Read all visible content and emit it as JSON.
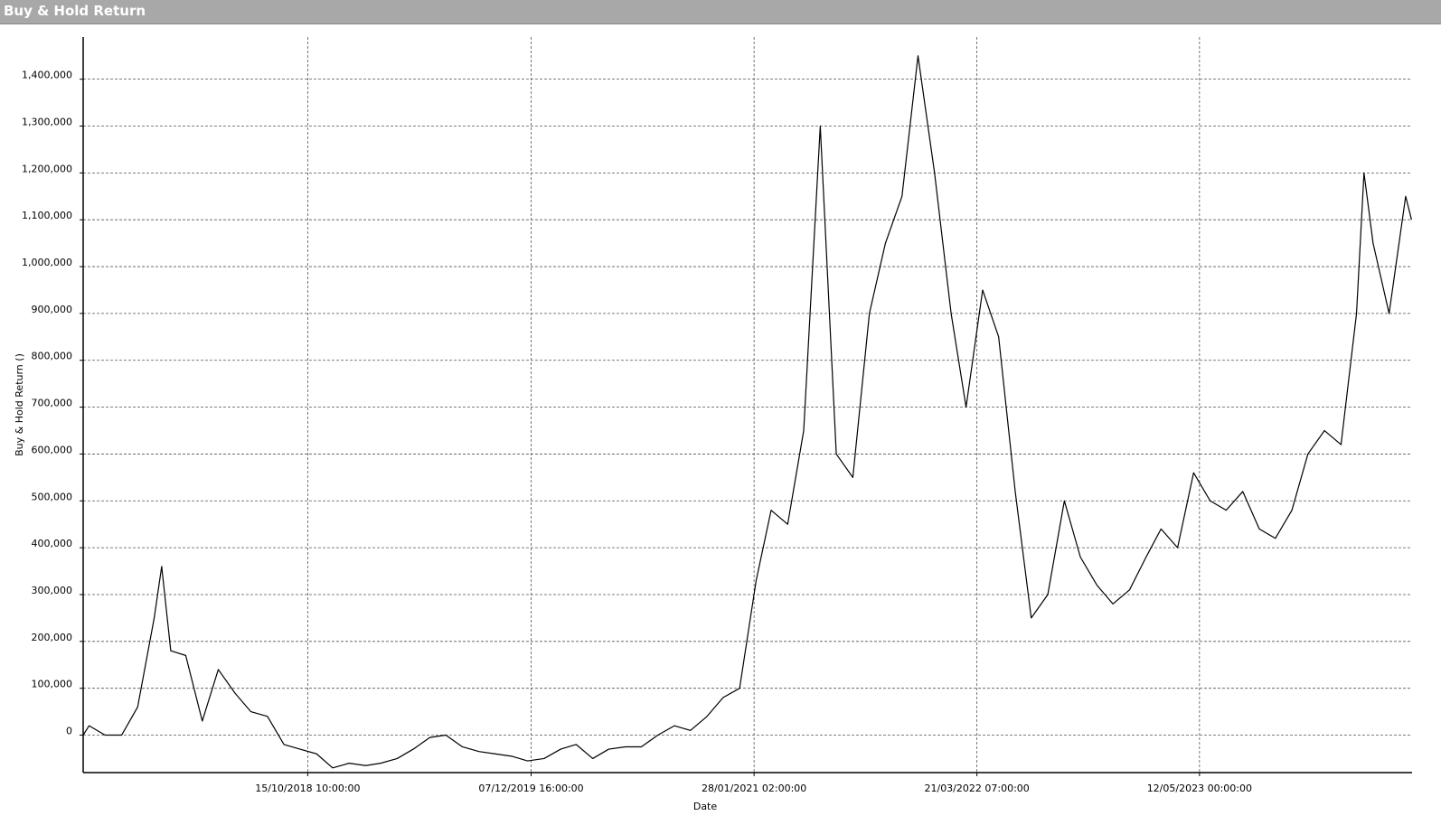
{
  "chart_data": {
    "type": "line",
    "title": "Buy & Hold Return",
    "x_label": "Date",
    "y_label": "Buy & Hold Return ()",
    "color": "#000000",
    "grid": true,
    "xlim": [
      "2017-08-21T00:00:00",
      "2024-06-13T00:00:00"
    ],
    "xticks": [
      {
        "value": "2018-10-15T10:00:00",
        "label": "15/10/2018 10:00:00"
      },
      {
        "value": "2019-12-07T16:00:00",
        "label": "07/12/2019 16:00:00"
      },
      {
        "value": "2021-01-28T02:00:00",
        "label": "28/01/2021 02:00:00"
      },
      {
        "value": "2022-03-21T07:00:00",
        "label": "21/03/2022 07:00:00"
      },
      {
        "value": "2023-05-12T00:00:00",
        "label": "12/05/2023 00:00:00"
      }
    ],
    "ylim": [
      -80000,
      1490000
    ],
    "yticks": [
      0,
      {
        "value": 100000,
        "label": "100,000"
      },
      {
        "value": 200000,
        "label": "200,000"
      },
      {
        "value": 300000,
        "label": "300,000"
      },
      {
        "value": 400000,
        "label": "400,000"
      },
      {
        "value": 500000,
        "label": "500,000"
      },
      {
        "value": 600000,
        "label": "600,000"
      },
      {
        "value": 700000,
        "label": "700,000"
      },
      {
        "value": 800000,
        "label": "800,000"
      },
      {
        "value": 900000,
        "label": "900,000"
      },
      {
        "value": 1000000,
        "label": "1,000,000"
      },
      {
        "value": 1100000,
        "label": "1,100,000"
      },
      {
        "value": 1200000,
        "label": "1,200,000"
      },
      {
        "value": 1300000,
        "label": "1,300,000"
      },
      {
        "value": 1400000,
        "label": "1,400,000"
      }
    ],
    "x": [
      "2017-08-21",
      "2017-09-01",
      "2017-10-01",
      "2017-11-01",
      "2017-12-01",
      "2018-01-01",
      "2018-01-15",
      "2018-02-01",
      "2018-03-01",
      "2018-04-01",
      "2018-05-01",
      "2018-06-01",
      "2018-07-01",
      "2018-08-01",
      "2018-09-01",
      "2018-10-01",
      "2018-11-01",
      "2018-12-01",
      "2019-01-01",
      "2019-02-01",
      "2019-03-01",
      "2019-04-01",
      "2019-05-01",
      "2019-06-01",
      "2019-07-01",
      "2019-08-01",
      "2019-09-01",
      "2019-10-01",
      "2019-11-01",
      "2019-12-01",
      "2020-01-01",
      "2020-02-01",
      "2020-03-01",
      "2020-04-01",
      "2020-05-01",
      "2020-06-01",
      "2020-07-01",
      "2020-08-01",
      "2020-09-01",
      "2020-10-01",
      "2020-11-01",
      "2020-12-01",
      "2021-01-01",
      "2021-02-01",
      "2021-03-01",
      "2021-04-01",
      "2021-05-01",
      "2021-06-01",
      "2021-07-01",
      "2021-08-01",
      "2021-09-01",
      "2021-10-01",
      "2021-11-01",
      "2021-12-01",
      "2022-01-01",
      "2022-02-01",
      "2022-03-01",
      "2022-04-01",
      "2022-05-01",
      "2022-06-01",
      "2022-07-01",
      "2022-08-01",
      "2022-09-01",
      "2022-10-01",
      "2022-11-01",
      "2022-12-01",
      "2023-01-01",
      "2023-02-01",
      "2023-03-01",
      "2023-04-01",
      "2023-05-01",
      "2023-06-01",
      "2023-07-01",
      "2023-08-01",
      "2023-09-01",
      "2023-10-01",
      "2023-11-01",
      "2023-12-01",
      "2024-01-01",
      "2024-02-01",
      "2024-03-01",
      "2024-03-15",
      "2024-04-01",
      "2024-05-01",
      "2024-06-01",
      "2024-06-12"
    ],
    "values": [
      0,
      20000,
      0,
      0,
      60000,
      250000,
      360000,
      180000,
      170000,
      30000,
      140000,
      90000,
      50000,
      40000,
      -20000,
      -30000,
      -40000,
      -70000,
      -60000,
      -65000,
      -60000,
      -50000,
      -30000,
      -5000,
      0,
      -25000,
      -35000,
      -40000,
      -45000,
      -55000,
      -50000,
      -30000,
      -20000,
      -50000,
      -30000,
      -25000,
      -25000,
      0,
      20000,
      10000,
      40000,
      80000,
      100000,
      330000,
      480000,
      450000,
      650000,
      1300000,
      600000,
      550000,
      900000,
      1050000,
      1150000,
      1450000,
      1200000,
      900000,
      700000,
      950000,
      850000,
      520000,
      250000,
      300000,
      500000,
      380000,
      320000,
      280000,
      310000,
      380000,
      440000,
      400000,
      560000,
      500000,
      480000,
      520000,
      440000,
      420000,
      480000,
      600000,
      650000,
      620000,
      900000,
      1200000,
      1050000,
      900000,
      1150000,
      1100000
    ]
  }
}
